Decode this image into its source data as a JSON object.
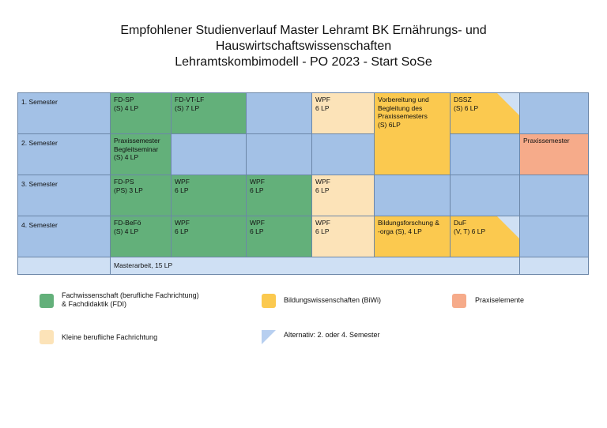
{
  "header": {
    "title_line1": "Empfohlener Studienverlauf Master Lehramt BK Ernährungs- und",
    "title_line2": "Hauswirtschaftswissenschaften",
    "title_line3": "Lehramtskombimodell - PO 2023 - Start SoSe"
  },
  "table": {
    "semesters": [
      "1. Semester",
      "2. Semester",
      "3. Semester",
      "4. Semester"
    ],
    "cells": {
      "r1_fd_sp": "FD-SP\n(S) 4 LP",
      "r1_fd_vt": "FD-VT-LF\n(S) 7 LP",
      "r1_wpf": "WPF\n6 LP",
      "vorbereitung": "Vorbereitung und\nBegleitung des\nPraxissemesters\n(S) 6LP",
      "r1_dssz": "DSSZ\n(S) 6 LP",
      "r2_praxis_begleit": "Praxissemester\nBegleitseminar\n(S) 4 LP",
      "r2_praxissemester": "Praxissemester",
      "r3_fd_ps": "FD-PS\n(PS) 3 LP",
      "r3_wpf_a": "WPF\n6 LP",
      "r3_wpf_b": "WPF\n6 LP",
      "r3_wpf_c": "WPF\n6 LP",
      "r4_fd_befo": "FD-BeFö\n(S) 4 LP",
      "r4_wpf_a": "WPF\n6 LP",
      "r4_wpf_b": "WPF\n6 LP",
      "r4_wpf_c": "WPF\n6 LP",
      "r4_bildung": "Bildungsforschung &\n-orga (S), 4 LP",
      "r4_duf": "DuF\n(V, T) 6 LP",
      "masterarbeit": "Masterarbeit, 15 LP"
    }
  },
  "legend": {
    "fachwissenschaft": "Fachwissenschaft (berufliche Fachrichtung)\n& Fachdidaktik (FDI)",
    "bildungswissenschaften": "Bildungswissenschaften (BiWi)",
    "praxiselemente": "Praxiselemente",
    "kleine": "Kleine berufliche Fachrichtung",
    "alternativ": "Alternativ: 2. oder 4. Semester"
  },
  "colors": {
    "green": "#63b07a",
    "blue": "#a3c1e6",
    "peach": "#fce3b8",
    "yellow": "#fbc94f",
    "salmon": "#f6ab8a"
  }
}
